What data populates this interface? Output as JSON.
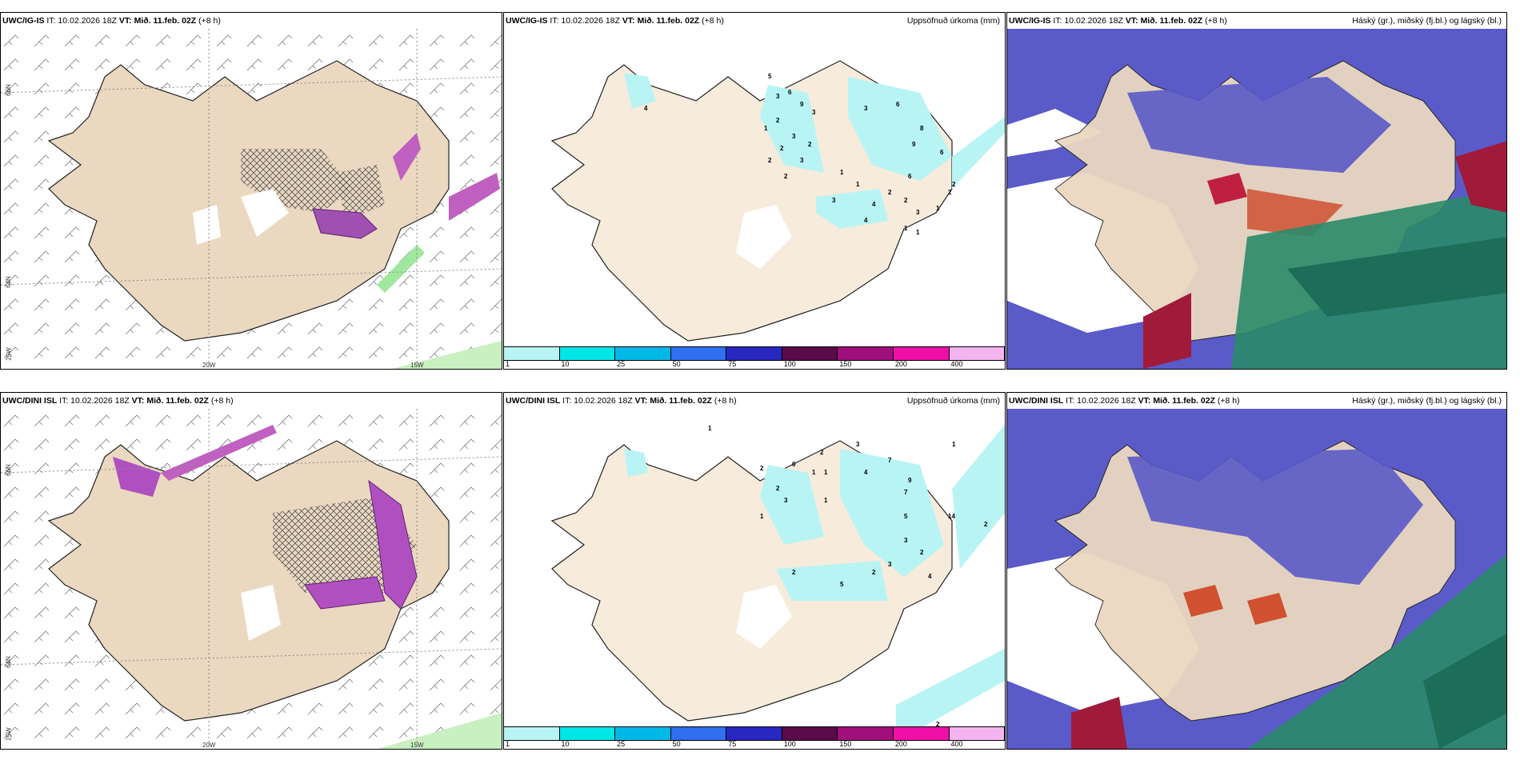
{
  "panels": {
    "p1": {
      "model": "UWC/IG-IS",
      "init": "IT: 10.02.2026 18Z",
      "valid_label": "VT:",
      "valid": "Mið. 11.feb. 02Z",
      "lead": "(+8 h)",
      "right_title": ""
    },
    "p2": {
      "model": "UWC/IG-IS",
      "init": "IT: 10.02.2026 18Z",
      "valid_label": "VT:",
      "valid": "Mið. 11.feb. 02Z",
      "lead": "(+8 h)",
      "right_title": "Uppsöfnuð úrkoma (mm)"
    },
    "p3": {
      "model": "UWC/IG-IS",
      "init": "IT: 10.02.2026 18Z",
      "valid_label": "VT:",
      "valid": "Mið. 11.feb. 02Z",
      "lead": "(+8 h)",
      "right_title": "Háský (gr.), miðský (fj.bl.) og lágský (bl.)"
    },
    "p4": {
      "model": "UWC/DINI ISL",
      "init": "IT: 10.02.2026 18Z",
      "valid_label": "VT:",
      "valid": "Mið. 11.feb. 02Z",
      "lead": "(+8 h)",
      "right_title": ""
    },
    "p5": {
      "model": "UWC/DINI ISL",
      "init": "IT: 10.02.2026 18Z",
      "valid_label": "VT:",
      "valid": "Mið. 11.feb. 02Z",
      "lead": "(+8 h)",
      "right_title": "Uppsöfnuð úrkoma (mm)"
    },
    "p6": {
      "model": "UWC/DINI ISL",
      "init": "IT: 10.02.2026 18Z",
      "valid_label": "VT:",
      "valid": "Mið. 11.feb. 02Z",
      "lead": "(+8 h)",
      "right_title": "Háský (gr.), miðský (fj.bl.) og lágský (bl.)"
    }
  },
  "graticule": {
    "lon_20": "20W",
    "lon_15": "15W",
    "lat_66": "66N",
    "lat_64": "64N",
    "lat_25": "25W"
  },
  "colorbar": {
    "labels": [
      "1",
      "10",
      "25",
      "50",
      "75",
      "100",
      "150",
      "200",
      "400"
    ],
    "colors": [
      "#b8f4f4",
      "#00e5e5",
      "#00b8e8",
      "#2f6ff0",
      "#2828c0",
      "#5a0a4a",
      "#a0107a",
      "#f010a8",
      "#f4b4f0"
    ]
  },
  "precip_labels_top": [
    "4",
    "5",
    "3",
    "6",
    "9",
    "3",
    "2",
    "3",
    "1",
    "2",
    "3",
    "2",
    "2",
    "2",
    "1",
    "1",
    "3",
    "4",
    "2",
    "2",
    "3",
    "4",
    "1",
    "1",
    "1",
    "2",
    "3",
    "6",
    "9",
    "8",
    "6",
    "2",
    "6"
  ],
  "precip_labels_bottom": [
    "2",
    "6",
    "2",
    "1",
    "1",
    "1",
    "2",
    "3",
    "3",
    "4",
    "7",
    "9",
    "7",
    "5",
    "14",
    "2",
    "3",
    "2",
    "3",
    "2",
    "4",
    "5",
    "1",
    "2",
    "2",
    "1",
    "1"
  ],
  "colors": {
    "land": "#ead8c0",
    "precip_land": "#f7ebdc",
    "high_cloud": "#5a5ac8",
    "mid_cloud": "#2a8a6a",
    "low_cloud": "#3a9c8c"
  }
}
